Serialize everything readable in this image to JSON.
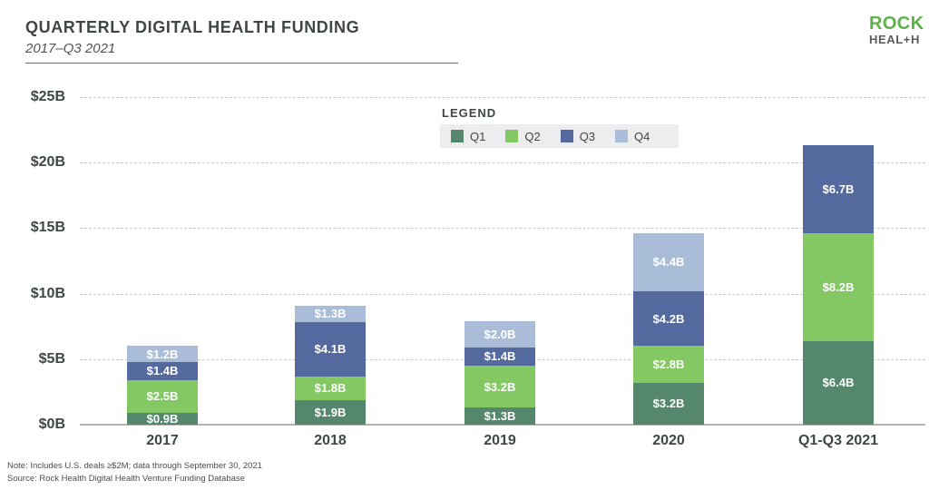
{
  "header": {
    "title": "QUARTERLY DIGITAL HEALTH FUNDING",
    "subtitle": "2017–Q3 2021"
  },
  "logo": {
    "line1": "ROCK",
    "line2": "HEAL+H",
    "green": "#5eb04c",
    "gray": "#575c5a"
  },
  "legend": {
    "title": "LEGEND",
    "items": [
      {
        "label": "Q1",
        "color": "#54876b"
      },
      {
        "label": "Q2",
        "color": "#84c863"
      },
      {
        "label": "Q3",
        "color": "#54699e"
      },
      {
        "label": "Q4",
        "color": "#a9bdd9"
      }
    ]
  },
  "y_axis": {
    "ticks": [
      {
        "label": "$25B",
        "value": 25
      },
      {
        "label": "$20B",
        "value": 20
      },
      {
        "label": "$15B",
        "value": 15
      },
      {
        "label": "$10B",
        "value": 10
      },
      {
        "label": "$5B",
        "value": 5
      },
      {
        "label": "$0B",
        "value": 0
      }
    ]
  },
  "chart_data": {
    "type": "bar",
    "stacked": true,
    "title": "Quarterly Digital Health Funding 2017–Q3 2021",
    "unit": "USD billions",
    "ylabel": "Funding ($B)",
    "ylim": [
      0,
      25
    ],
    "grid": "dashed-horizontal",
    "legend_position": "top-center",
    "categories": [
      "2017",
      "2018",
      "2019",
      "2020",
      "Q1-Q3 2021"
    ],
    "series": [
      {
        "name": "Q1",
        "color": "#54876b",
        "values": [
          0.9,
          1.9,
          1.3,
          3.2,
          6.4
        ],
        "labels": [
          "$0.9B",
          "$1.9B",
          "$1.3B",
          "$3.2B",
          "$6.4B"
        ]
      },
      {
        "name": "Q2",
        "color": "#84c863",
        "values": [
          2.5,
          1.8,
          3.2,
          2.8,
          8.2
        ],
        "labels": [
          "$2.5B",
          "$1.8B",
          "$3.2B",
          "$2.8B",
          "$8.2B"
        ]
      },
      {
        "name": "Q3",
        "color": "#54699e",
        "values": [
          1.4,
          4.1,
          1.4,
          4.2,
          6.7
        ],
        "labels": [
          "$1.4B",
          "$4.1B",
          "$1.4B",
          "$4.2B",
          "$6.7B"
        ]
      },
      {
        "name": "Q4",
        "color": "#a9bdd9",
        "values": [
          1.2,
          1.3,
          2.0,
          4.4,
          null
        ],
        "labels": [
          "$1.2B",
          "$1.3B",
          "$2.0B",
          "$4.4B",
          null
        ]
      }
    ]
  },
  "footnote": {
    "line1": "Note: Includes U.S. deals ≥$2M; data through September 30, 2021",
    "line2": "Source: Rock Health Digital Health Venture Funding Database"
  }
}
